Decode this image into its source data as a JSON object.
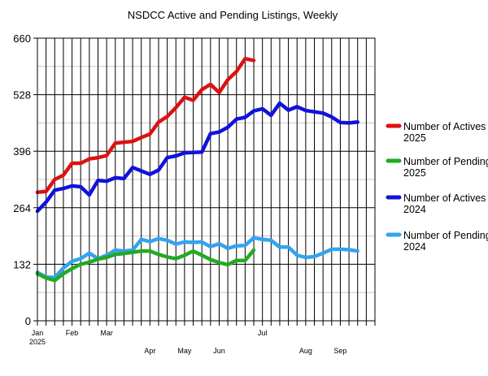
{
  "chart_data": {
    "type": "line",
    "title": "NSDCC Active and Pending Listings, Weekly",
    "xlabel": "",
    "ylabel": "",
    "ylim": [
      0,
      660
    ],
    "y_ticks": [
      0,
      132,
      264,
      396,
      528,
      660
    ],
    "x_tick_labels": [
      {
        "week": 0,
        "label": "Jan",
        "label2": "2025"
      },
      {
        "week": 4,
        "label": "Feb"
      },
      {
        "week": 8,
        "label": "Mar"
      },
      {
        "week": 13,
        "label": "Apr"
      },
      {
        "week": 17,
        "label": "May"
      },
      {
        "week": 21,
        "label": "Jun"
      },
      {
        "week": 26,
        "label": "Jul"
      },
      {
        "week": 31,
        "label": "Aug"
      },
      {
        "week": 35,
        "label": "Sep"
      }
    ],
    "weeks": 39,
    "grid": true,
    "legend_position": "right",
    "series": [
      {
        "name": "Number of Actives 2025",
        "color": "#dd1111",
        "x": [
          0,
          1,
          2,
          3,
          4,
          5,
          6,
          7,
          8,
          9,
          10,
          11,
          12,
          13,
          14,
          15,
          16,
          17,
          18,
          19,
          20,
          21,
          22,
          23,
          24,
          25
        ],
        "values": [
          300,
          302,
          330,
          340,
          368,
          368,
          378,
          381,
          386,
          415,
          417,
          419,
          428,
          436,
          464,
          477,
          498,
          522,
          515,
          540,
          552,
          533,
          563,
          582,
          612,
          608
        ]
      },
      {
        "name": "Number of Pendings 2025",
        "color": "#22aa22",
        "x": [
          0,
          1,
          2,
          3,
          4,
          5,
          6,
          7,
          8,
          9,
          10,
          11,
          12,
          13,
          14,
          15,
          16,
          17,
          18,
          19,
          20,
          21,
          22,
          23,
          24,
          25
        ],
        "values": [
          110,
          100,
          94,
          110,
          122,
          132,
          137,
          144,
          148,
          155,
          157,
          160,
          163,
          163,
          155,
          149,
          145,
          153,
          163,
          153,
          143,
          136,
          131,
          141,
          141,
          165
        ]
      },
      {
        "name": "Number of Actives 2024",
        "color": "#1111dd",
        "x": [
          0,
          1,
          2,
          3,
          4,
          5,
          6,
          7,
          8,
          9,
          10,
          11,
          12,
          13,
          14,
          15,
          16,
          17,
          18,
          19,
          20,
          21,
          22,
          23,
          24,
          25,
          26,
          27,
          28,
          29,
          30,
          31,
          32,
          33,
          34,
          35,
          36,
          37
        ],
        "values": [
          256,
          277,
          305,
          309,
          315,
          313,
          294,
          328,
          326,
          334,
          332,
          358,
          350,
          342,
          352,
          381,
          385,
          392,
          393,
          394,
          437,
          441,
          452,
          471,
          475,
          490,
          495,
          480,
          508,
          492,
          500,
          491,
          488,
          485,
          476,
          463,
          462,
          464
        ]
      },
      {
        "name": "Number of Pendings 2024",
        "color": "#33a3ef",
        "x": [
          0,
          1,
          2,
          3,
          4,
          5,
          6,
          7,
          8,
          9,
          10,
          11,
          12,
          13,
          14,
          15,
          16,
          17,
          18,
          19,
          20,
          21,
          22,
          23,
          24,
          25,
          26,
          27,
          28,
          29,
          30,
          31,
          32,
          33,
          34,
          35,
          36,
          37
        ],
        "values": [
          113,
          102,
          101,
          123,
          139,
          145,
          158,
          145,
          153,
          165,
          163,
          165,
          190,
          185,
          192,
          188,
          179,
          184,
          183,
          184,
          173,
          180,
          169,
          175,
          176,
          194,
          190,
          188,
          172,
          172,
          153,
          148,
          150,
          158,
          167,
          167,
          166,
          163
        ]
      }
    ]
  }
}
